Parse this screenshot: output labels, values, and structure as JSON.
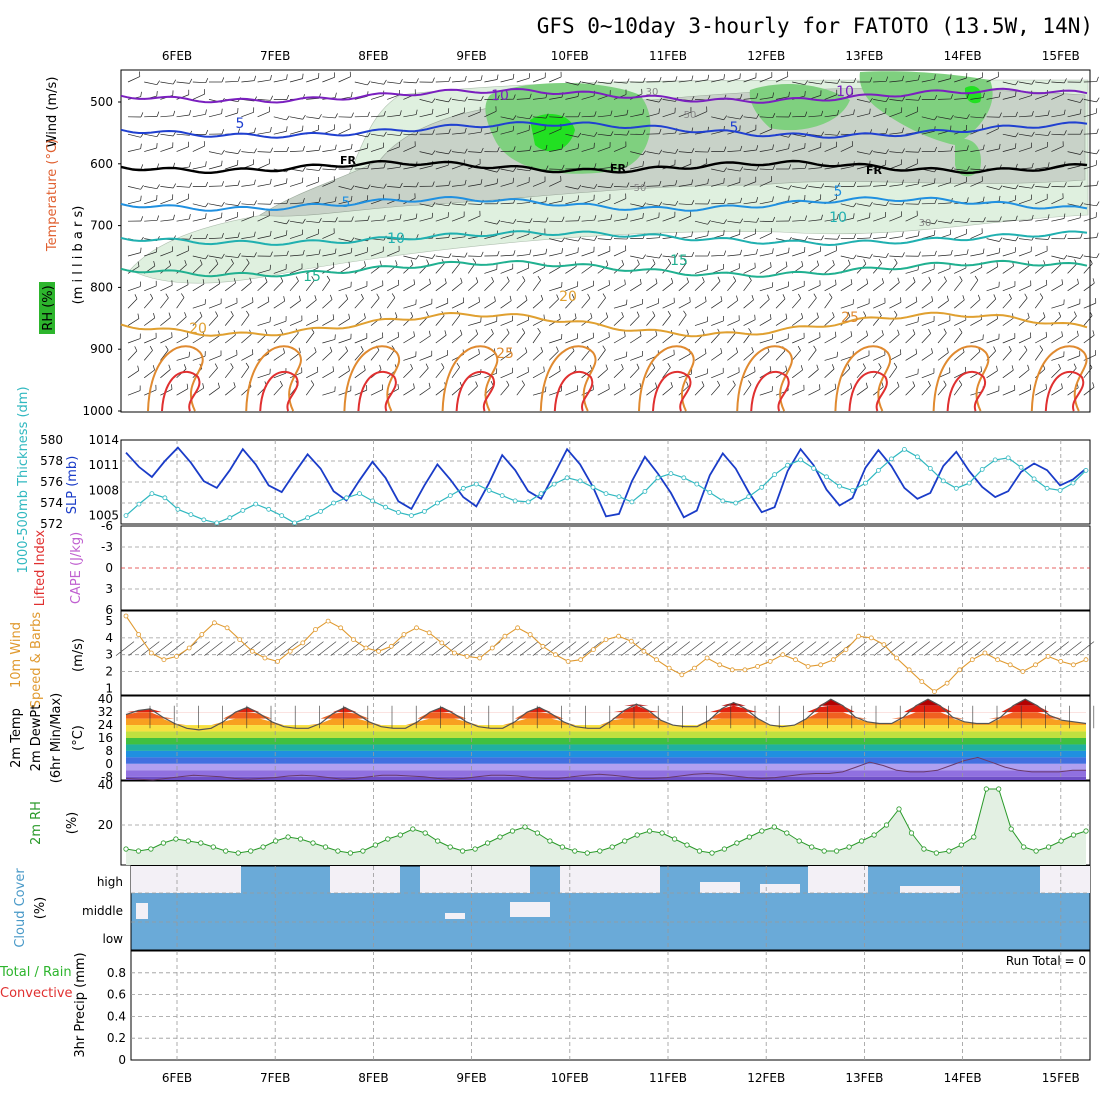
{
  "title": "GFS 0~10day 3-hourly for FATOTO (13.5W, 14N)",
  "days": [
    "6FEB",
    "7FEB",
    "8FEB",
    "9FEB",
    "10FEB",
    "11FEB",
    "12FEB",
    "13FEB",
    "14FEB",
    "15FEB"
  ],
  "colors": {
    "rh_green": "#2db52d",
    "rh_light": "#dff0df",
    "rh_grey": "#9aa89a",
    "wind_purple": "#7a1fbf",
    "temp_blue": "#2040d0",
    "temp_cyan": "#20b0b0",
    "temp_orange": "#e0a030",
    "temp_red": "#e03030",
    "freezing": "#000000",
    "slp": "#1a3cc8",
    "thickness": "#30b8c0",
    "wind10m": "#e09a30",
    "rh2m": "#2a9a2a",
    "cloud": "#6aaad8",
    "grid": "#999999"
  },
  "panels": {
    "upper": {
      "ylabels": [
        {
          "text": "Wind (m/s)",
          "color": "#000000"
        },
        {
          "text": "Temperature (°C)",
          "color": "#e06030"
        },
        {
          "text": "(m i l l i b a r s)",
          "color": "#000000"
        },
        {
          "text": "RH (%)",
          "color": "#2db52d"
        }
      ],
      "yticks": [
        "500",
        "600",
        "700",
        "800",
        "900",
        "1000"
      ],
      "freezing_label": "FR",
      "contour_labels": [
        {
          "text": "10",
          "color": "#7a1fbf"
        },
        {
          "text": "10",
          "color": "#7a1fbf"
        },
        {
          "text": "5",
          "color": "#2040d0"
        },
        {
          "text": "5",
          "color": "#2040d0"
        },
        {
          "text": "5",
          "color": "#2090e0"
        },
        {
          "text": "5",
          "color": "#2090e0"
        },
        {
          "text": "10",
          "color": "#20b0b0"
        },
        {
          "text": "10",
          "color": "#20b0b0"
        },
        {
          "text": "15",
          "color": "#20b090"
        },
        {
          "text": "15",
          "color": "#20b090"
        },
        {
          "text": "20",
          "color": "#e0a030"
        },
        {
          "text": "20",
          "color": "#e0a030"
        },
        {
          "text": "25",
          "color": "#e08a30"
        },
        {
          "text": "25",
          "color": "#e08a30"
        },
        {
          "text": "FR",
          "color": "#000000"
        },
        {
          "text": "FR",
          "color": "#000000"
        },
        {
          "text": "FR",
          "color": "#000000"
        },
        {
          "text": "30",
          "color": "#888888"
        },
        {
          "text": "50",
          "color": "#888888"
        },
        {
          "text": "50",
          "color": "#888888"
        },
        {
          "text": "30",
          "color": "#888888"
        }
      ]
    },
    "thickness_slp": {
      "ylabel_left": "1000-500mb Thickness (dm)",
      "ylabel_right": "SLP (mb)",
      "left_ticks": [
        "580",
        "578",
        "576",
        "574",
        "572"
      ],
      "right_ticks": [
        "1014",
        "1011",
        "1008",
        "1005"
      ]
    },
    "stability": {
      "ylabel_left": "Lifted Index",
      "ylabel_right": "CAPE (J/kg)",
      "ticks": [
        "-6",
        "-3",
        "0",
        "3",
        "6"
      ]
    },
    "wind10m": {
      "ylabel_a": "10m Wind",
      "ylabel_b": "Speed & Barbs",
      "unit": "(m/s)",
      "ticks": [
        "5",
        "4",
        "3",
        "2",
        "1"
      ]
    },
    "temp2m": {
      "ylabel_a": "2m Temp",
      "ylabel_b": "2m DewPt",
      "ylabel_c": "(6hr Min/Max)",
      "unit": "(°C)",
      "ticks": [
        "40",
        "32",
        "24",
        "16",
        "8",
        "0",
        "-8"
      ]
    },
    "rh2m": {
      "ylabel": "2m RH",
      "unit": "(%)",
      "ticks": [
        "40",
        "20"
      ]
    },
    "cloud": {
      "ylabel": "Cloud Cover",
      "unit": "(%)",
      "levels": [
        "high",
        "middle",
        "low"
      ]
    },
    "precip": {
      "ylabel_a": "3hr Precip (mm)",
      "ylabel_b": "Total / Rain",
      "ylabel_c": "Convective",
      "run_total": "Run Total = 0",
      "ticks": [
        "0.8",
        "0.6",
        "0.4",
        "0.2",
        "0"
      ]
    }
  },
  "chart_data": [
    {
      "type": "line",
      "title": "1000-500mb Thickness (dm) / SLP (mb)",
      "series": [
        {
          "name": "SLP (mb)",
          "values": [
            1012.5,
            1010.8,
            1009.6,
            1011.5,
            1013.1,
            1011.3,
            1009.1,
            1008.3,
            1010.4,
            1012.9,
            1011.1,
            1008.6,
            1007.8,
            1010.1,
            1012.3,
            1010.6,
            1007.9,
            1006.8,
            1009.2,
            1011.4,
            1009.5,
            1006.7,
            1005.8,
            1008.6,
            1011.1,
            1009.3,
            1007.2,
            1006.1,
            1008.9,
            1012.2,
            1010.4,
            1007.9,
            1007.0,
            1009.9,
            1012.9,
            1011.1,
            1008.4,
            1004.9,
            1005.2,
            1009.1,
            1012.0,
            1010.0,
            1007.7,
            1004.8,
            1005.6,
            1009.8,
            1012.4,
            1010.6,
            1007.8,
            1005.4,
            1006.0,
            1010.3,
            1012.9,
            1011.0,
            1008.1,
            1006.2,
            1007.1,
            1010.7,
            1012.8,
            1010.9,
            1008.3,
            1007.0,
            1007.7,
            1010.9,
            1012.6,
            1010.3,
            1008.4,
            1007.2,
            1007.9,
            1010.2,
            1011.2,
            1010.4,
            1008.6,
            1009.3,
            1010.6
          ]
        },
        {
          "name": "1000-500mb Thickness (dm)",
          "values": [
            572.8,
            573.9,
            574.9,
            574.5,
            573.4,
            572.9,
            572.4,
            572.1,
            572.6,
            573.3,
            573.9,
            573.4,
            572.8,
            572.1,
            572.6,
            573.2,
            574.0,
            574.5,
            574.9,
            574.2,
            573.6,
            573.1,
            572.8,
            573.2,
            574.0,
            574.7,
            575.4,
            575.8,
            575.2,
            574.7,
            574.2,
            574.1,
            574.9,
            575.8,
            576.4,
            576.1,
            575.5,
            574.9,
            574.6,
            574.1,
            575.1,
            576.4,
            576.8,
            576.4,
            575.8,
            575.0,
            574.2,
            574.0,
            574.6,
            575.5,
            576.7,
            577.6,
            578.1,
            577.3,
            576.5,
            575.6,
            575.2,
            575.9,
            577.1,
            578.2,
            579.1,
            578.4,
            577.3,
            576.1,
            575.4,
            575.9,
            577.2,
            578.1,
            578.3,
            577.4,
            576.3,
            575.4,
            575.2,
            575.9,
            577.1
          ]
        }
      ],
      "ylim_left": [
        572,
        580
      ],
      "ylim_right": [
        1004,
        1014
      ]
    },
    {
      "type": "line",
      "title": "10m Wind Speed (m/s)",
      "series": [
        {
          "name": "10m Wind Speed",
          "values": [
            5.3,
            4.2,
            3.1,
            2.7,
            2.9,
            3.4,
            4.2,
            4.9,
            4.6,
            3.9,
            3.2,
            2.8,
            2.6,
            3.2,
            3.7,
            4.5,
            5.0,
            4.6,
            3.9,
            3.4,
            3.2,
            3.5,
            4.2,
            4.6,
            4.3,
            3.7,
            3.1,
            2.9,
            2.8,
            3.4,
            4.1,
            4.6,
            4.2,
            3.5,
            3.0,
            2.6,
            2.7,
            3.3,
            3.9,
            4.1,
            3.8,
            3.2,
            2.7,
            2.2,
            1.8,
            2.2,
            2.8,
            2.4,
            2.1,
            2.1,
            2.3,
            2.6,
            3.0,
            2.7,
            2.3,
            2.4,
            2.7,
            3.3,
            4.1,
            4.0,
            3.6,
            2.8,
            2.1,
            1.4,
            0.8,
            1.3,
            2.1,
            2.7,
            3.1,
            2.7,
            2.4,
            2.0,
            2.4,
            2.9,
            2.6,
            2.4,
            2.7
          ]
        }
      ],
      "ylim": [
        1,
        5.5
      ]
    },
    {
      "type": "area",
      "title": "2m Temp / 2m DewPt (°C)",
      "series": [
        {
          "name": "2m Temp",
          "values": [
            30.5,
            33,
            34,
            29,
            25,
            22,
            21,
            22,
            26,
            32,
            35,
            31,
            26,
            23,
            22,
            22,
            25,
            31,
            35,
            31,
            26,
            23,
            22,
            22,
            26,
            32,
            35,
            31,
            26,
            23,
            22,
            22,
            26,
            32,
            35,
            31,
            26,
            23,
            22,
            22,
            27,
            33,
            37,
            33,
            27,
            24,
            23,
            23,
            27,
            34,
            38,
            34,
            28,
            24,
            23,
            24,
            28,
            35,
            40,
            36,
            29,
            26,
            25,
            25,
            29,
            36,
            40,
            36,
            29,
            26,
            25,
            25,
            29,
            36,
            40,
            36,
            30,
            27,
            26,
            25
          ]
        },
        {
          "name": "2m DewPt",
          "values": [
            -9,
            -9.5,
            -10,
            -9,
            -8,
            -7,
            -7.5,
            -8,
            -9,
            -9.5,
            -9,
            -8.5,
            -7.5,
            -7,
            -7.5,
            -8.5,
            -9.5,
            -9,
            -8,
            -7,
            -7,
            -7.5,
            -8,
            -9,
            -9.5,
            -9,
            -8,
            -7,
            -7,
            -7.5,
            -8.5,
            -9,
            -9,
            -8,
            -7,
            -6.5,
            -7,
            -8,
            -9,
            -9,
            -8.5,
            -7.5,
            -6.5,
            -6,
            -6.5,
            -7.5,
            -8.5,
            -9,
            -8.5,
            -7.5,
            -6.5,
            -6,
            -6,
            -5,
            -2,
            1,
            -1,
            -4,
            -5,
            -5,
            -4,
            -1,
            2,
            4,
            1,
            -2,
            -4,
            -5,
            -5,
            -5,
            -4,
            -4
          ]
        }
      ],
      "ylim": [
        -10,
        42
      ]
    },
    {
      "type": "area",
      "title": "2m RH (%)",
      "series": [
        {
          "name": "2m RH",
          "values": [
            8,
            7,
            8,
            11,
            13,
            12,
            11,
            9,
            7,
            6,
            7,
            9,
            12,
            14,
            13,
            11,
            9,
            7,
            6,
            7,
            10,
            13,
            15,
            18,
            16,
            12,
            9,
            7,
            8,
            11,
            14,
            17,
            19,
            16,
            12,
            9,
            7,
            6,
            7,
            9,
            12,
            15,
            17,
            16,
            13,
            10,
            7,
            6,
            8,
            11,
            14,
            17,
            19,
            16,
            12,
            9,
            7,
            7,
            9,
            12,
            15,
            20,
            28,
            16,
            8,
            6,
            7,
            10,
            14,
            38,
            38,
            18,
            9,
            7,
            9,
            12,
            15,
            17
          ]
        }
      ],
      "ylim": [
        0,
        42
      ]
    },
    {
      "type": "bar",
      "title": "3hr Precip (mm)",
      "series": [
        {
          "name": "3hr Precip",
          "values": []
        }
      ],
      "ylim": [
        0,
        1
      ]
    }
  ]
}
